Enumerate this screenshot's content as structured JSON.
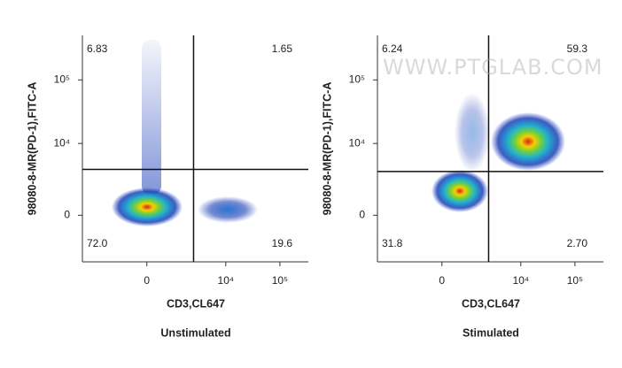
{
  "watermark": "WWW.PTGLAB.COM",
  "chart_data": [
    {
      "type": "scatter",
      "title": "Unstimulated",
      "x_label": "CD3,CL647",
      "y_label": "98080-8-MR(PD-1),FITC-A",
      "xscale": "biexponential",
      "yscale": "biexponential",
      "xlim": [
        -5400,
        335000
      ],
      "ylim": [
        -3900,
        500000
      ],
      "xticks": [
        0,
        {
          "value": 10000,
          "label": "10⁴"
        },
        {
          "value": 100000,
          "label": "10⁵"
        }
      ],
      "yticks": [
        0,
        {
          "value": 10000,
          "label": "10⁴"
        },
        {
          "value": 100000,
          "label": "10⁵"
        }
      ],
      "gate_x": 2500,
      "gate_y": 3800,
      "values": [
        6.83,
        1.65,
        72.0,
        19.6
      ],
      "value_labels": [
        "6.83",
        "1.65",
        "72.0",
        "19.6"
      ]
    },
    {
      "type": "scatter",
      "title": "Stimulated",
      "x_label": "CD3,CL647",
      "y_label": "98080-8-MR(PD-1),FITC-A",
      "xscale": "biexponential",
      "yscale": "biexponential",
      "xlim": [
        -5400,
        335000
      ],
      "ylim": [
        -3900,
        500000
      ],
      "xticks": [
        0,
        {
          "value": 10000,
          "label": "10⁴"
        },
        {
          "value": 100000,
          "label": "10⁵"
        }
      ],
      "yticks": [
        0,
        {
          "value": 10000,
          "label": "10⁴"
        },
        {
          "value": 100000,
          "label": "10⁵"
        }
      ],
      "gate_x": 2500,
      "gate_y": 3500,
      "values": [
        6.24,
        59.3,
        31.8,
        2.7
      ],
      "value_labels": [
        "6.24",
        "59.3",
        "31.8",
        "2.70"
      ]
    }
  ]
}
